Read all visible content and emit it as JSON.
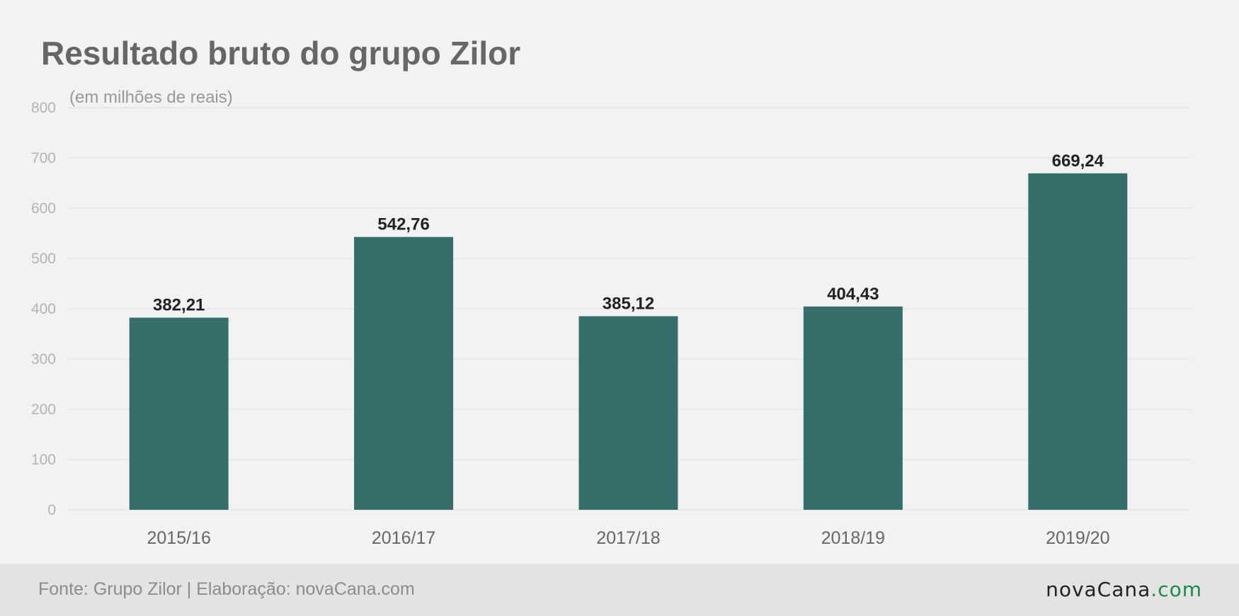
{
  "chart_data": {
    "type": "bar",
    "title": "Resultado bruto do grupo Zilor",
    "subtitle": "(em milhões de reais)",
    "categories": [
      "2015/16",
      "2016/17",
      "2017/18",
      "2018/19",
      "2019/20"
    ],
    "values": [
      382.21,
      542.76,
      385.12,
      404.43,
      669.24
    ],
    "data_labels": [
      "382,21",
      "542,76",
      "385,12",
      "404,43",
      "669,24"
    ],
    "ylim": [
      0,
      800
    ],
    "yticks": [
      0,
      100,
      200,
      300,
      400,
      500,
      600,
      700,
      800
    ],
    "grid": true,
    "bar_color": "#356e6b",
    "xlabel": "",
    "ylabel": ""
  },
  "footer": {
    "source": "Fonte: Grupo Zilor | Elaboração: novaCana.com",
    "brand_main": "novaCana",
    "brand_suffix": ".com",
    "brand_color": "#222222",
    "brand_suffix_color": "#1a8a4a"
  }
}
